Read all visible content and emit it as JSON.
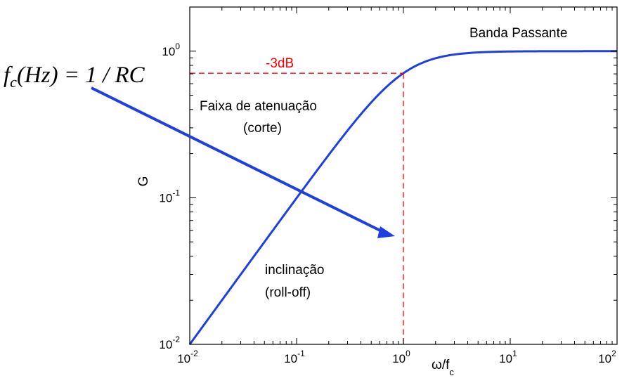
{
  "chart_data": {
    "type": "line",
    "title": "",
    "xlabel": "ω/f",
    "xlabel_subscript": "c",
    "ylabel": "G",
    "xscale": "log",
    "yscale": "log",
    "xlim": [
      0.01,
      100
    ],
    "ylim": [
      0.01,
      2
    ],
    "xticks": [
      0.01,
      0.1,
      1,
      10,
      100
    ],
    "xtick_labels": [
      {
        "base": "10",
        "exp": "-2"
      },
      {
        "base": "10",
        "exp": "-1"
      },
      {
        "base": "10",
        "exp": "0"
      },
      {
        "base": "10",
        "exp": "1"
      },
      {
        "base": "10",
        "exp": "2"
      }
    ],
    "yticks": [
      0.01,
      0.1,
      1
    ],
    "ytick_labels": [
      {
        "base": "10",
        "exp": "-2"
      },
      {
        "base": "10",
        "exp": "-1"
      },
      {
        "base": "10",
        "exp": "0"
      }
    ],
    "grid": false,
    "series": [
      {
        "color": "#1f3fe0",
        "x": [
          0.01,
          0.02,
          0.05,
          0.1,
          0.2,
          0.3,
          0.5,
          0.7,
          1,
          1.5,
          2,
          3,
          5,
          10,
          20,
          50,
          100
        ],
        "y": [
          0.01,
          0.02,
          0.0499,
          0.0995,
          0.196,
          0.287,
          0.447,
          0.573,
          0.707,
          0.832,
          0.894,
          0.949,
          0.981,
          0.995,
          0.999,
          1.0,
          1.0
        ]
      }
    ],
    "reference_lines": {
      "color": "#ff0000",
      "style": "dashed",
      "cutoff_x": 1,
      "cutoff_y": 0.707,
      "label": "-3dB"
    },
    "annotations": {
      "formula": {
        "f": "f",
        "sub": "c",
        "rest": "(Hz) = 1 / RC"
      },
      "passband": "Banda Passante",
      "attenuation_line1": "Faixa de atenuação",
      "attenuation_line2": "(corte)",
      "rolloff_line1": "inclinação",
      "rolloff_line2": "(roll-off)"
    },
    "arrow_color": "#1f3fe0"
  }
}
